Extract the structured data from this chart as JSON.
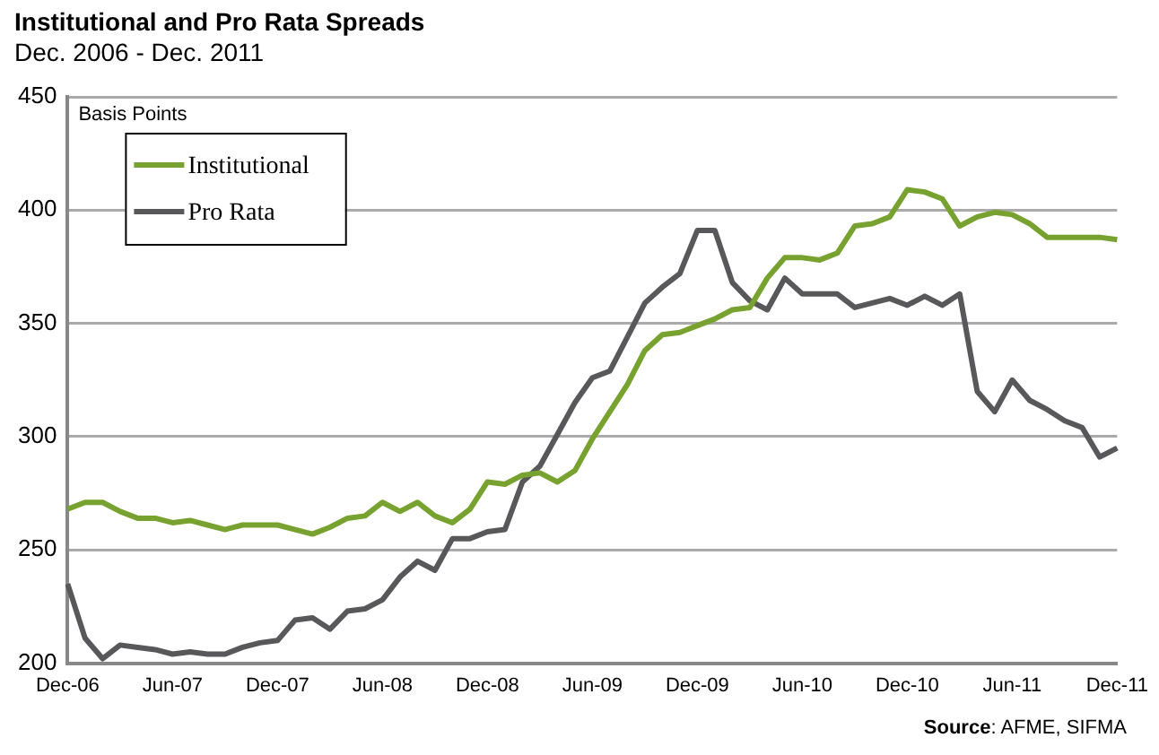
{
  "chart_data": {
    "type": "line",
    "title": "Institutional and Pro Rata Spreads",
    "subtitle": "Dec. 2006 - Dec. 2011",
    "ylabel": "Basis Points",
    "categories": [
      "Dec-06",
      null,
      null,
      null,
      null,
      null,
      "Jun-07",
      null,
      null,
      null,
      null,
      null,
      "Dec-07",
      null,
      null,
      null,
      null,
      null,
      "Jun-08",
      null,
      null,
      null,
      null,
      null,
      "Dec-08",
      null,
      null,
      null,
      null,
      null,
      "Jun-09",
      null,
      null,
      null,
      null,
      null,
      "Dec-09",
      null,
      null,
      null,
      null,
      null,
      "Jun-10",
      null,
      null,
      null,
      null,
      null,
      "Dec-10",
      null,
      null,
      null,
      null,
      null,
      "Jun-11",
      null,
      null,
      null,
      null,
      null,
      "Dec-11"
    ],
    "series": [
      {
        "name": "Institutional",
        "color": "#78a22f",
        "values": [
          268,
          271,
          271,
          267,
          264,
          264,
          262,
          263,
          261,
          259,
          261,
          261,
          261,
          259,
          257,
          260,
          264,
          265,
          271,
          267,
          271,
          265,
          262,
          268,
          280,
          279,
          283,
          284,
          280,
          285,
          299,
          311,
          323,
          338,
          345,
          346,
          349,
          352,
          356,
          357,
          370,
          379,
          379,
          378,
          381,
          393,
          394,
          397,
          409,
          408,
          405,
          393,
          397,
          399,
          398,
          394,
          388,
          388,
          388,
          388,
          387
        ]
      },
      {
        "name": "Pro Rata",
        "color": "#58585a",
        "values": [
          235,
          211,
          202,
          208,
          207,
          206,
          204,
          205,
          204,
          204,
          207,
          209,
          210,
          219,
          220,
          215,
          223,
          224,
          228,
          238,
          245,
          241,
          255,
          255,
          258,
          259,
          280,
          287,
          301,
          315,
          326,
          329,
          344,
          359,
          366,
          372,
          391,
          391,
          368,
          360,
          356,
          370,
          363,
          363,
          363,
          357,
          359,
          361,
          358,
          362,
          358,
          363,
          320,
          311,
          325,
          316,
          312,
          307,
          304,
          291,
          295
        ]
      }
    ],
    "ylim": [
      200,
      450
    ],
    "yticks": [
      200,
      250,
      300,
      350,
      400,
      450
    ],
    "grid": "y",
    "legend": "top left",
    "marker": "none",
    "line_style": "solid",
    "annotations": [
      "Source: AFME, SIFMA"
    ]
  }
}
